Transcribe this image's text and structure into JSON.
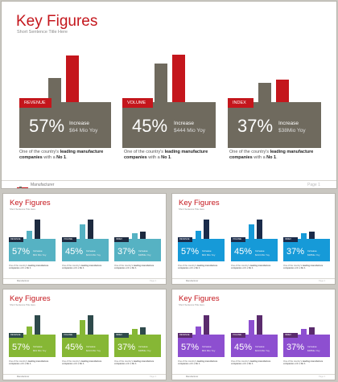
{
  "main_slide": {
    "title": "Key Figures",
    "subtitle": "Short Sentence Title Here",
    "footer_text": "Manufacturer",
    "page_label": "Page 1",
    "cards": [
      {
        "tag": "REVENUE",
        "percent": "57%",
        "increase_label": "Increase",
        "amount": "$64 Mio Yoy",
        "desc_pre": "One of the country's ",
        "desc_bold1": "leading manufacture companies",
        "desc_mid": " with a ",
        "desc_bold2": "No 1",
        "desc_post": "."
      },
      {
        "tag": "VOLUME",
        "percent": "45%",
        "increase_label": "Increase",
        "amount": "$444 Mio Yoy",
        "desc_pre": "One of the country's ",
        "desc_bold1": "leading manufacture companies",
        "desc_mid": " with a ",
        "desc_bold2": "No 1",
        "desc_post": "."
      },
      {
        "tag": "INDEX",
        "percent": "37%",
        "increase_label": "Increase",
        "amount": "$38Mio Yoy",
        "desc_pre": "One of the country's ",
        "desc_bold1": "leading manufacture companies",
        "desc_mid": " with a ",
        "desc_bold2": "No 1",
        "desc_post": "."
      }
    ]
  },
  "variants": [
    {
      "theme": "teal",
      "title": "Key Figures",
      "panel_color": "#56b2c3",
      "accent": "#1d2a3f",
      "title_color": "#c4161c"
    },
    {
      "theme": "blue",
      "title": "Key Figures",
      "panel_color": "#169ad8",
      "accent": "#1a2b4a",
      "title_color": "#c4161c"
    },
    {
      "theme": "green",
      "title": "Key Figures",
      "panel_color": "#86b735",
      "accent": "#2e4a4b",
      "title_color": "#c4161c"
    },
    {
      "theme": "purple",
      "title": "Key Figures",
      "panel_color": "#8d4fd0",
      "accent": "#5a2b6d",
      "title_color": "#c4161c"
    }
  ],
  "thumb_cards": [
    {
      "tag": "REVENUE",
      "percent": "57%",
      "increase_label": "Increase",
      "amount": "$64 Mio Yoy"
    },
    {
      "tag": "VOLUME",
      "percent": "45%",
      "increase_label": "Increase",
      "amount": "$444 Mio Yoy"
    },
    {
      "tag": "INDEX",
      "percent": "37%",
      "increase_label": "Increase",
      "amount": "$38Mio Yoy"
    }
  ],
  "colors": {
    "main_panel": "#6f6a5e",
    "main_accent": "#c4161c",
    "title_red": "#c4161c"
  }
}
